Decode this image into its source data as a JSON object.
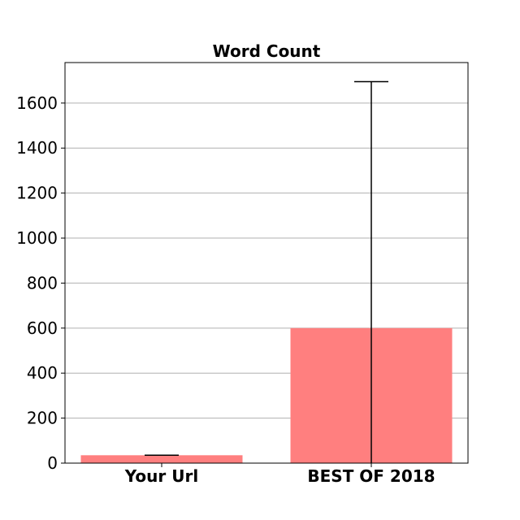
{
  "chart_data": {
    "type": "bar",
    "title": "Word Count",
    "xlabel": "",
    "ylabel": "",
    "categories": [
      "Your Url",
      "BEST OF 2018"
    ],
    "values": [
      35,
      600
    ],
    "error_bars": [
      {
        "low": 35,
        "high": 35
      },
      {
        "low": 0,
        "high": 1695
      }
    ],
    "ylim": [
      0,
      1780
    ],
    "yticks": [
      0,
      200,
      400,
      600,
      800,
      1000,
      1200,
      1400,
      1600
    ],
    "grid": "y-axis",
    "bar_color": "#ff7f7f",
    "error_bar_color": "#000000"
  }
}
